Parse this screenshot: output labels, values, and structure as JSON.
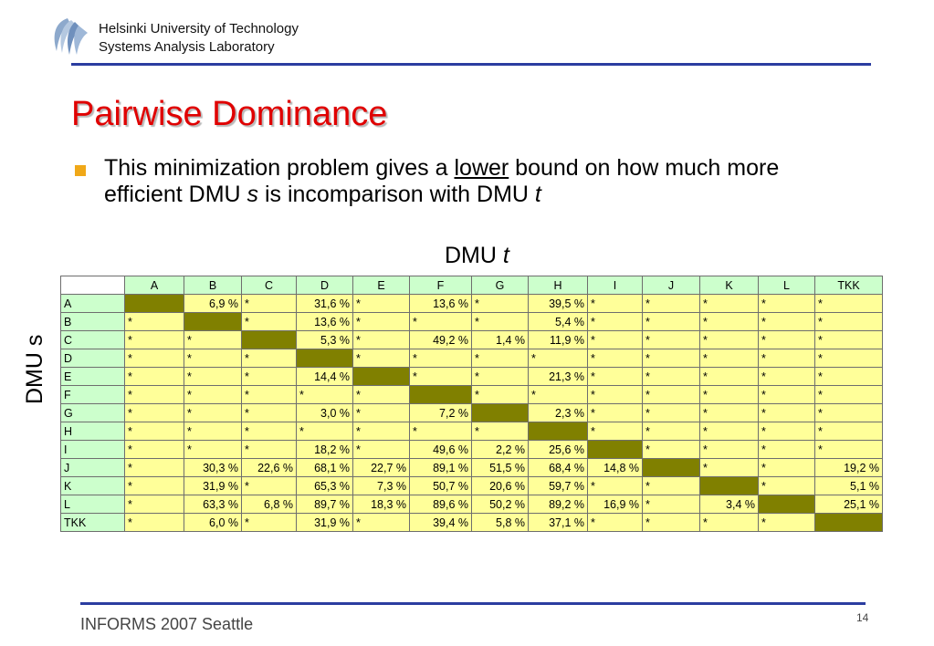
{
  "header": {
    "institution_line1": "Helsinki University of Technology",
    "institution_line2": "Systems Analysis Laboratory",
    "colors": {
      "rule": "#2b3da0",
      "title": "#e00000",
      "bullet": "#f0a818"
    }
  },
  "slide": {
    "title": "Pairwise Dominance",
    "bullet": {
      "part1": "This minimization problem gives a ",
      "underlined": "lower",
      "part2": " bound on how much more efficient DMU ",
      "var_s": "s",
      "part3": " is incomparison with DMU ",
      "var_t": "t"
    },
    "col_axis_label": "DMU ",
    "col_axis_var": "t",
    "row_axis_label": "DMU s"
  },
  "table": {
    "columns": [
      "A",
      "B",
      "C",
      "D",
      "E",
      "F",
      "G",
      "H",
      "I",
      "J",
      "K",
      "L",
      "TKK"
    ],
    "rows": [
      {
        "label": "A",
        "cells": [
          "",
          "6,9 %",
          "*",
          "31,6 %",
          "*",
          "13,6 %",
          "*",
          "39,5 %",
          "*",
          "*",
          "*",
          "*",
          "*"
        ]
      },
      {
        "label": "B",
        "cells": [
          "*",
          "",
          "*",
          "13,6 %",
          "*",
          "*",
          "*",
          "5,4 %",
          "*",
          "*",
          "*",
          "*",
          "*"
        ]
      },
      {
        "label": "C",
        "cells": [
          "*",
          "*",
          "",
          "5,3 %",
          "*",
          "49,2 %",
          "1,4 %",
          "11,9 %",
          "*",
          "*",
          "*",
          "*",
          "*"
        ]
      },
      {
        "label": "D",
        "cells": [
          "*",
          "*",
          "*",
          "",
          "*",
          "*",
          "*",
          "*",
          "*",
          "*",
          "*",
          "*",
          "*"
        ]
      },
      {
        "label": "E",
        "cells": [
          "*",
          "*",
          "*",
          "14,4 %",
          "",
          "*",
          "*",
          "21,3 %",
          "*",
          "*",
          "*",
          "*",
          "*"
        ]
      },
      {
        "label": "F",
        "cells": [
          "*",
          "*",
          "*",
          "*",
          "*",
          "",
          "*",
          "*",
          "*",
          "*",
          "*",
          "*",
          "*"
        ]
      },
      {
        "label": "G",
        "cells": [
          "*",
          "*",
          "*",
          "3,0 %",
          "*",
          "7,2 %",
          "",
          "2,3 %",
          "*",
          "*",
          "*",
          "*",
          "*"
        ]
      },
      {
        "label": "H",
        "cells": [
          "*",
          "*",
          "*",
          "*",
          "*",
          "*",
          "*",
          "",
          "*",
          "*",
          "*",
          "*",
          "*"
        ]
      },
      {
        "label": "I",
        "cells": [
          "*",
          "*",
          "*",
          "18,2 %",
          "*",
          "49,6 %",
          "2,2 %",
          "25,6 %",
          "",
          "*",
          "*",
          "*",
          "*"
        ]
      },
      {
        "label": "J",
        "cells": [
          "*",
          "30,3 %",
          "22,6 %",
          "68,1 %",
          "22,7 %",
          "89,1 %",
          "51,5 %",
          "68,4 %",
          "14,8 %",
          "",
          "*",
          "*",
          "19,2 %"
        ]
      },
      {
        "label": "K",
        "cells": [
          "*",
          "31,9 %",
          "*",
          "65,3 %",
          "7,3 %",
          "50,7 %",
          "20,6 %",
          "59,7 %",
          "*",
          "*",
          "",
          "*",
          "5,1 %"
        ]
      },
      {
        "label": "L",
        "cells": [
          "*",
          "63,3 %",
          "6,8 %",
          "89,7 %",
          "18,3 %",
          "89,6 %",
          "50,2 %",
          "89,2 %",
          "16,9 %",
          "*",
          "3,4 %",
          "",
          "25,1 %"
        ]
      },
      {
        "label": "TKK",
        "cells": [
          "*",
          "6,0 %",
          "*",
          "31,9 %",
          "*",
          "39,4 %",
          "5,8 %",
          "37,1 %",
          "*",
          "*",
          "*",
          "*",
          ""
        ]
      }
    ],
    "colors": {
      "header_bg": "#ccffcc",
      "cell_bg": "#ffff99",
      "diagonal_bg": "#808000"
    }
  },
  "footer": {
    "conference": "INFORMS 2007 Seattle",
    "page_number": "14"
  }
}
